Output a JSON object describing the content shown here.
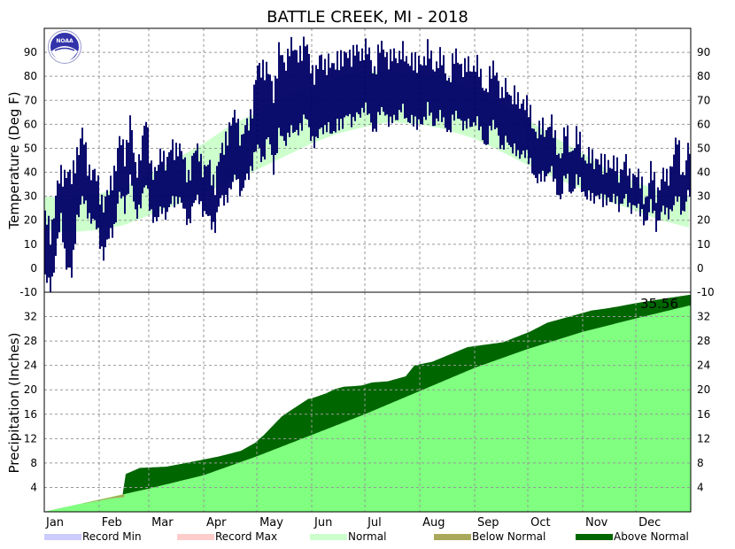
{
  "title": "BATTLE CREEK, MI - 2018",
  "logo_text": "NOAA",
  "chart_data": [
    {
      "type": "line",
      "name": "temperature",
      "ylabel": "Temperature (Deg F)",
      "ylim": [
        -10,
        100
      ],
      "yticks": [
        -10,
        0,
        10,
        20,
        30,
        40,
        50,
        60,
        70,
        80,
        90
      ],
      "grid": true,
      "x_unit": "day of year 2018",
      "normal_band": {
        "days": [
          1,
          15,
          32,
          46,
          60,
          74,
          91,
          105,
          121,
          135,
          152,
          166,
          182,
          196,
          213,
          227,
          244,
          258,
          274,
          288,
          305,
          319,
          335,
          349,
          365
        ],
        "low": [
          16,
          15,
          16,
          18,
          22,
          26,
          31,
          36,
          41,
          46,
          52,
          56,
          59,
          61,
          60,
          58,
          54,
          49,
          43,
          38,
          33,
          28,
          24,
          20,
          17
        ],
        "high": [
          30,
          29,
          31,
          34,
          39,
          45,
          52,
          59,
          65,
          71,
          76,
          80,
          82,
          82,
          81,
          79,
          75,
          69,
          62,
          55,
          48,
          41,
          36,
          32,
          30
        ]
      },
      "daily_range": {
        "days": [
          1,
          4,
          7,
          10,
          13,
          16,
          19,
          22,
          25,
          28,
          31,
          34,
          37,
          40,
          43,
          46,
          49,
          52,
          55,
          58,
          61,
          64,
          67,
          70,
          73,
          76,
          79,
          82,
          85,
          88,
          91,
          94,
          97,
          100,
          103,
          106,
          109,
          112,
          115,
          118,
          121,
          124,
          127,
          130,
          133,
          136,
          139,
          142,
          145,
          148,
          151,
          154,
          157,
          160,
          163,
          166,
          169,
          172,
          175,
          178,
          181,
          184,
          187,
          190,
          193,
          196,
          199,
          202,
          205,
          208,
          211,
          214,
          217,
          220,
          223,
          226,
          229,
          232,
          235,
          238,
          241,
          244,
          247,
          250,
          253,
          256,
          259,
          262,
          265,
          268,
          271,
          274,
          277,
          280,
          283,
          286,
          289,
          292,
          295,
          298,
          301,
          304,
          307,
          310,
          313,
          316,
          319,
          322,
          325,
          328,
          331,
          334,
          337,
          340,
          343,
          346,
          349,
          352,
          355,
          358,
          361,
          364
        ],
        "low": [
          -5,
          -8,
          5,
          20,
          2,
          -4,
          22,
          28,
          24,
          20,
          14,
          6,
          12,
          18,
          30,
          26,
          38,
          22,
          28,
          34,
          24,
          18,
          26,
          22,
          28,
          30,
          24,
          20,
          26,
          30,
          22,
          20,
          18,
          28,
          30,
          32,
          40,
          30,
          38,
          44,
          50,
          46,
          54,
          42,
          56,
          52,
          58,
          55,
          60,
          62,
          56,
          52,
          58,
          60,
          54,
          62,
          58,
          66,
          60,
          64,
          68,
          62,
          58,
          64,
          66,
          60,
          62,
          68,
          60,
          64,
          58,
          62,
          66,
          60,
          64,
          60,
          58,
          62,
          64,
          58,
          60,
          62,
          56,
          52,
          58,
          60,
          48,
          54,
          50,
          46,
          50,
          44,
          40,
          36,
          38,
          42,
          34,
          30,
          38,
          32,
          36,
          34,
          30,
          28,
          32,
          26,
          30,
          28,
          26,
          30,
          24,
          28,
          22,
          20,
          26,
          18,
          24,
          22,
          26,
          28,
          24,
          30
        ],
        "high": [
          20,
          15,
          30,
          38,
          42,
          35,
          50,
          55,
          44,
          40,
          34,
          28,
          30,
          42,
          52,
          48,
          62,
          40,
          50,
          60,
          44,
          38,
          50,
          44,
          50,
          52,
          44,
          40,
          46,
          50,
          40,
          42,
          36,
          46,
          56,
          58,
          66,
          52,
          60,
          68,
          82,
          86,
          80,
          74,
          90,
          84,
          94,
          88,
          92,
          92,
          86,
          80,
          88,
          86,
          82,
          90,
          84,
          92,
          88,
          90,
          92,
          88,
          84,
          90,
          92,
          86,
          88,
          92,
          84,
          90,
          82,
          88,
          90,
          84,
          88,
          84,
          80,
          86,
          88,
          82,
          84,
          86,
          78,
          76,
          80,
          84,
          70,
          76,
          72,
          68,
          72,
          64,
          60,
          56,
          58,
          62,
          52,
          48,
          56,
          50,
          54,
          50,
          46,
          44,
          48,
          40,
          46,
          42,
          40,
          46,
          36,
          42,
          34,
          30,
          40,
          32,
          38,
          36,
          46,
          52,
          40,
          48
        ]
      }
    },
    {
      "type": "area",
      "name": "precipitation",
      "ylabel": "Precipitation (Inches)",
      "ylim": [
        0,
        36
      ],
      "yticks": [
        4,
        8,
        12,
        16,
        20,
        24,
        28,
        32
      ],
      "grid": true,
      "x_unit": "day of year 2018",
      "annotation": "35.56",
      "normal_cumulative": {
        "days": [
          1,
          32,
          60,
          91,
          121,
          152,
          182,
          213,
          244,
          274,
          305,
          335,
          365
        ],
        "values": [
          0.0,
          2.0,
          3.8,
          6.0,
          9.1,
          12.6,
          16.0,
          19.8,
          23.6,
          26.7,
          29.5,
          31.7,
          33.8
        ]
      },
      "observed_cumulative": {
        "days": [
          1,
          20,
          31,
          38,
          45,
          47,
          55,
          70,
          88,
          100,
          112,
          120,
          125,
          135,
          140,
          150,
          152,
          160,
          165,
          170,
          180,
          186,
          195,
          205,
          210,
          220,
          240,
          260,
          275,
          285,
          300,
          310,
          320,
          335,
          350,
          365
        ],
        "values": [
          0.0,
          1.2,
          1.8,
          2.2,
          2.4,
          6.2,
          7.2,
          7.4,
          8.4,
          9.1,
          10.0,
          11.3,
          12.6,
          15.6,
          16.6,
          18.5,
          18.6,
          19.4,
          20.1,
          20.5,
          20.7,
          21.2,
          21.4,
          22.2,
          24.0,
          24.6,
          27.0,
          27.8,
          29.5,
          31.0,
          32.2,
          33.0,
          33.4,
          34.2,
          34.9,
          35.56
        ]
      }
    }
  ],
  "x_axis": {
    "months": [
      "Jan",
      "Feb",
      "Mar",
      "Apr",
      "May",
      "Jun",
      "Jul",
      "Aug",
      "Sep",
      "Oct",
      "Nov",
      "Dec"
    ],
    "month_start_days": [
      1,
      32,
      60,
      91,
      121,
      152,
      182,
      213,
      244,
      274,
      305,
      335
    ],
    "range": [
      1,
      366
    ]
  },
  "legend": {
    "placement": "bottom",
    "items": [
      {
        "label": "Record Min",
        "color": "#ccccff"
      },
      {
        "label": "Record Max",
        "color": "#ffcccc"
      },
      {
        "label": "Normal",
        "color": "#ccffcc"
      },
      {
        "label": "Below Normal",
        "color": "#aaa85a"
      },
      {
        "label": "Above Normal",
        "color": "#006600"
      }
    ]
  },
  "colors": {
    "daily_range": "#000066",
    "normal_band": "#ccffcc",
    "normal_precip": "#80ff80",
    "above_normal": "#006600",
    "below_normal": "#aaa85a"
  }
}
